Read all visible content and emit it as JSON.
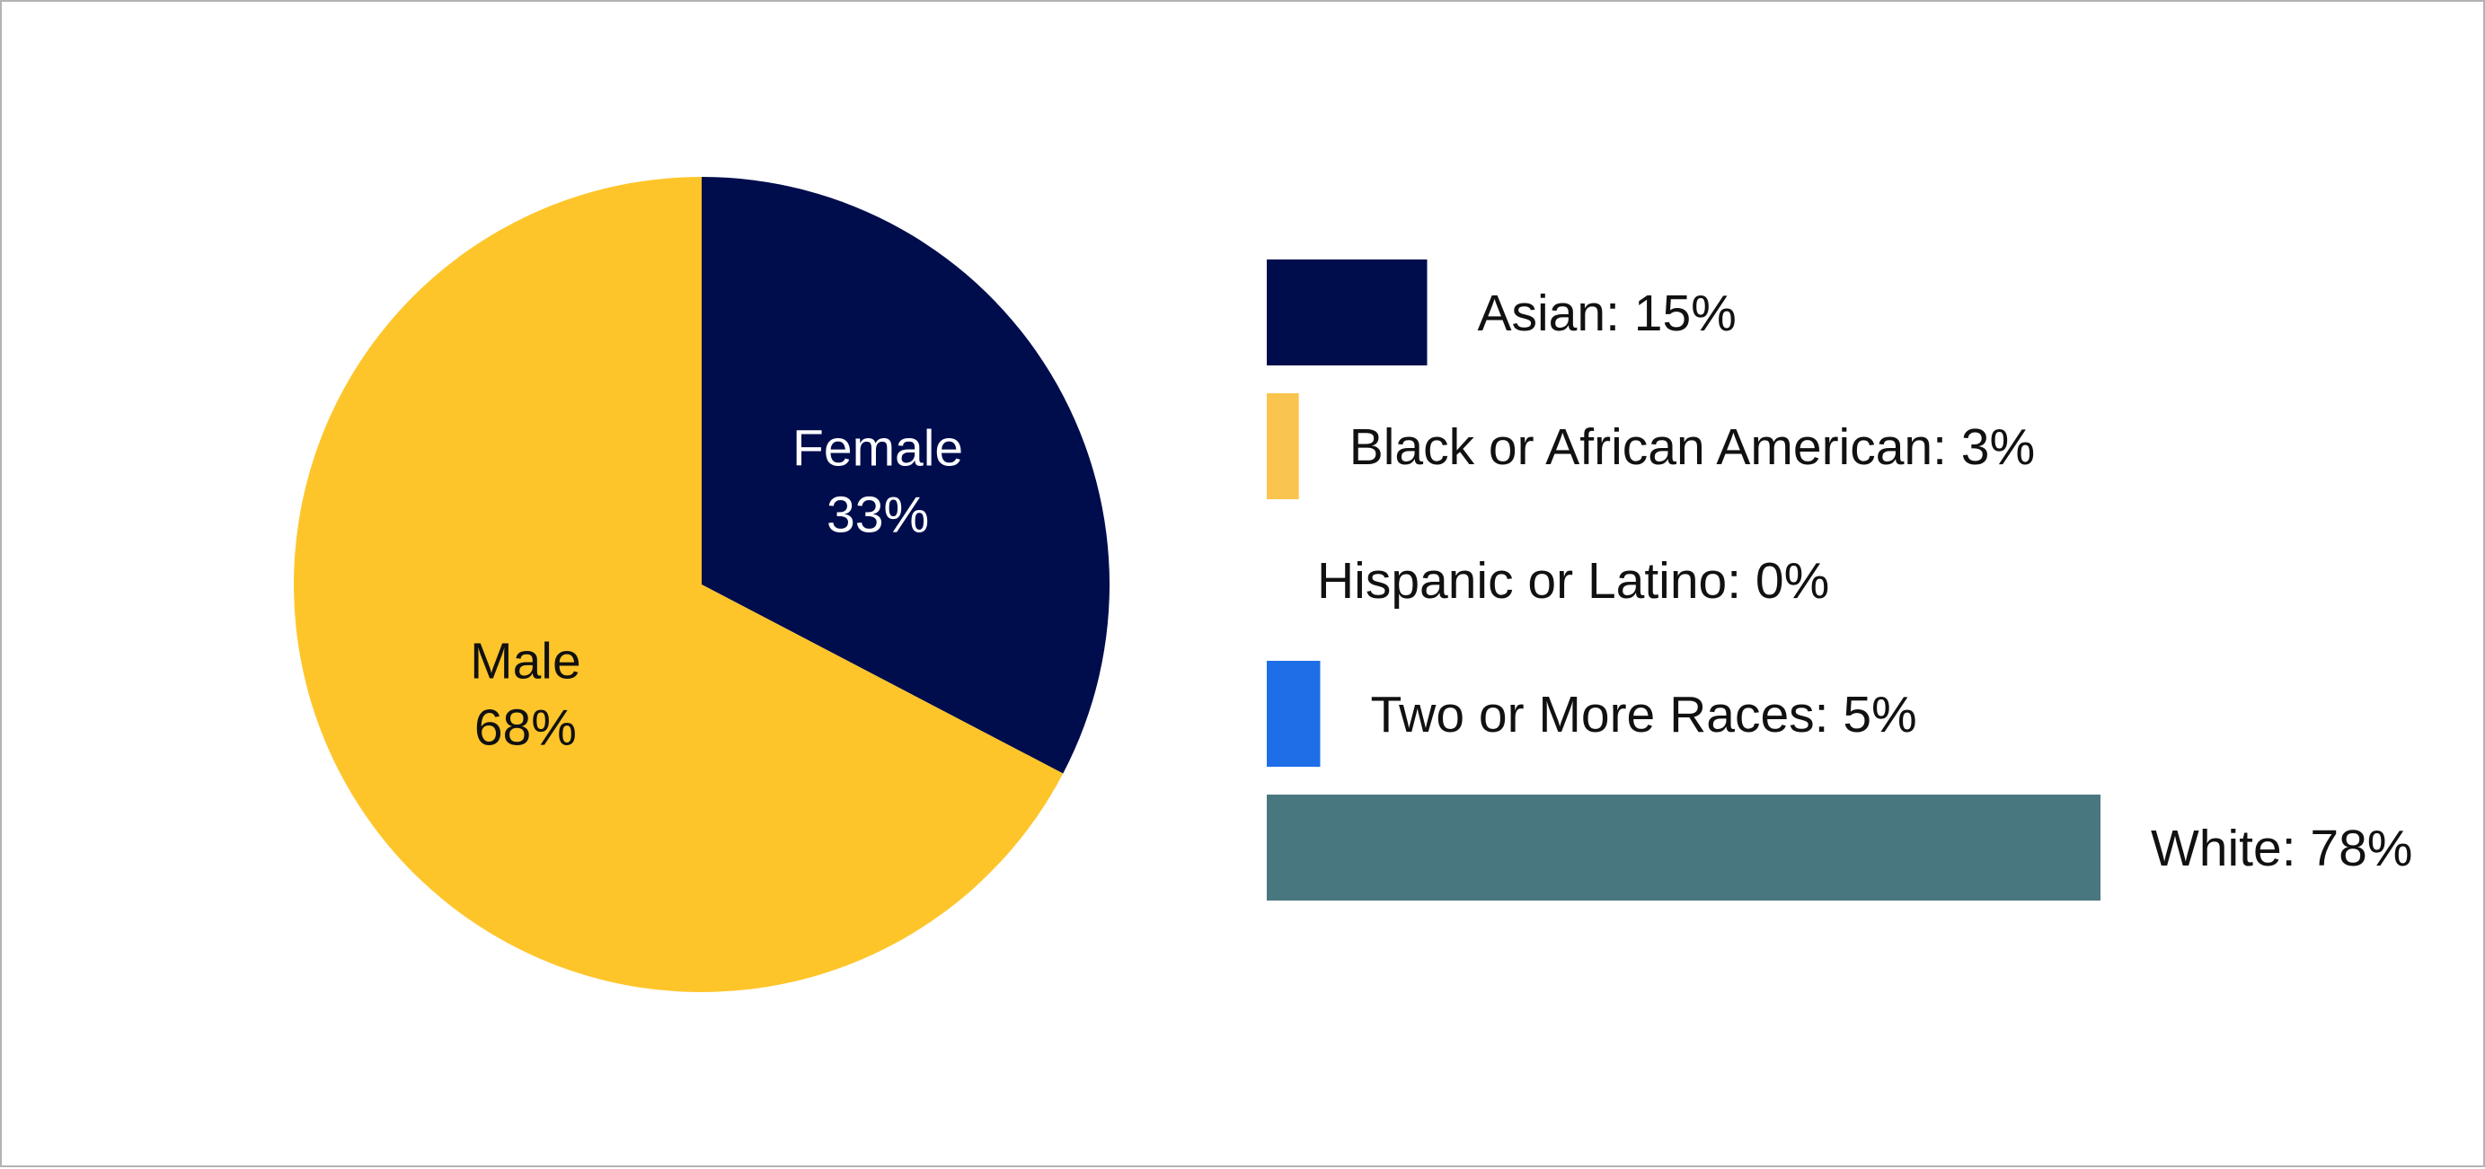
{
  "chart_data": [
    {
      "type": "pie",
      "slices": [
        {
          "label": "Female",
          "value": 33,
          "value_label": "33%",
          "color": "#000d4d",
          "text_color": "#ffffff"
        },
        {
          "label": "Male",
          "value": 68,
          "value_label": "68%",
          "color": "#fec52b",
          "text_color": "#111111"
        }
      ],
      "start_angle_deg": 0,
      "direction": "clockwise"
    },
    {
      "type": "bar",
      "orientation": "horizontal",
      "categories": [
        "Asian",
        "Black or African American",
        "Hispanic or Latino",
        "Two or More Races",
        "White"
      ],
      "values": [
        15,
        3,
        0,
        5,
        78
      ],
      "labels": [
        "Asian: 15%",
        "Black or African American: 3%",
        "Hispanic or Latino: 0%",
        "Two or More Races: 5%",
        "White: 78%"
      ],
      "colors": [
        "#000d4d",
        "#f9c54f",
        "#000d4d",
        "#1e6ee8",
        "#497780"
      ],
      "xlim": [
        0,
        78
      ]
    }
  ]
}
